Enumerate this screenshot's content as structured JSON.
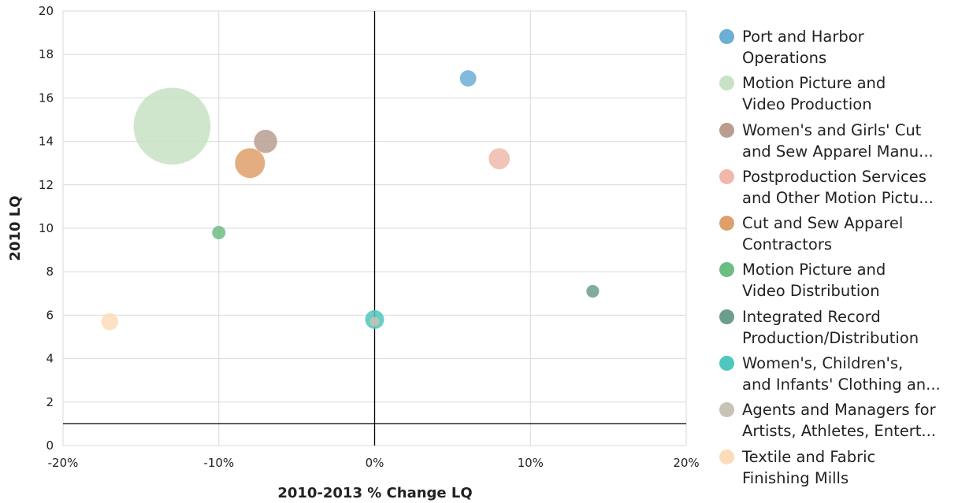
{
  "chart_data": {
    "type": "scatter",
    "xlabel": "2010-2013 % Change LQ",
    "ylabel": "2010 LQ",
    "xlim": [
      -20,
      20
    ],
    "ylim": [
      0,
      20
    ],
    "x_ticks": [
      "-20%",
      "-10%",
      "0%",
      "10%",
      "20%"
    ],
    "y_ticks": [
      "0",
      "2",
      "4",
      "6",
      "8",
      "10",
      "12",
      "14",
      "16",
      "18",
      "20"
    ],
    "grid": true,
    "reference_lines": {
      "x": 0,
      "y": 1
    },
    "legend_position": "right",
    "series": [
      {
        "name": "Port and Harbor\nOperations",
        "x": 6,
        "y": 16.9,
        "size": 1.5,
        "color": "#6baed6"
      },
      {
        "name": "Motion Picture and\nVideo Production",
        "x": -13,
        "y": 14.7,
        "size": 33,
        "color": "#c7e2c4"
      },
      {
        "name": "Women's and Girls' Cut\nand Sew Apparel Manu...",
        "x": -7,
        "y": 14,
        "size": 3,
        "color": "#b99e8f"
      },
      {
        "name": "Postproduction Services\nand Other Motion Pictu...",
        "x": 8,
        "y": 13.2,
        "size": 2.5,
        "color": "#f0b8ad"
      },
      {
        "name": "Cut and Sew Apparel\nContractors",
        "x": -8,
        "y": 13,
        "size": 5,
        "color": "#de9f6a"
      },
      {
        "name": "Motion Picture and\nVideo Distribution",
        "x": -10,
        "y": 9.8,
        "size": 1,
        "color": "#6cbd83"
      },
      {
        "name": "Integrated Record\nProduction/Distribution",
        "x": 14,
        "y": 7.1,
        "size": 0.9,
        "color": "#6a9e8a"
      },
      {
        "name": "Women's, Children's,\nand Infants' Clothing an...",
        "x": 0,
        "y": 5.8,
        "size": 2,
        "color": "#4fc7bc"
      },
      {
        "name": "Agents and Managers for\nArtists, Athletes, Entert...",
        "x": 0,
        "y": 5.7,
        "size": 0.5,
        "color": "#c9c2b6"
      },
      {
        "name": "Textile and Fabric\nFinishing Mills",
        "x": -17,
        "y": 5.7,
        "size": 1.6,
        "color": "#fcdcb8"
      }
    ]
  }
}
